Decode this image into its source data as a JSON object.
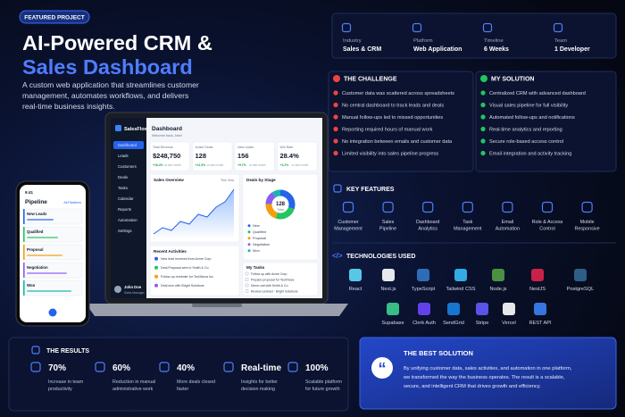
{
  "badge": "FEATURED PROJECT",
  "title": [
    "AI-Powered CRM &",
    "Sales Dashboard"
  ],
  "description": [
    "A custom web application that streamlines customer",
    "management, automates workflows, and delivers",
    "real-time business insights."
  ],
  "info": [
    {
      "label": "Industry",
      "value": "Sales & CRM"
    },
    {
      "label": "Platform",
      "value": "Web Application"
    },
    {
      "label": "Timeline",
      "value": "6 Weeks"
    },
    {
      "label": "Team",
      "value": "1 Developer"
    }
  ],
  "challenge": {
    "title": "THE CHALLENGE",
    "items": [
      "Customer data was scattered across spreadsheets",
      "No central dashboard to track leads and deals",
      "Manual follow-ups led to missed opportunities",
      "Reporting required hours of manual work",
      "No integration between emails and customer data",
      "Limited visibility into sales pipeline progress"
    ]
  },
  "solution": {
    "title": "MY SOLUTION",
    "items": [
      "Centralized CRM with advanced dashboard",
      "Visual sales pipeline for full visibility",
      "Automated follow-ups and notifications",
      "Real-time analytics and reporting",
      "Secure role-based access control",
      "Email integration and activity tracking"
    ]
  },
  "features": {
    "title": "KEY FEATURES",
    "items": [
      [
        "Customer",
        "Management"
      ],
      [
        "Sales",
        "Pipeline"
      ],
      [
        "Dashboard",
        "Analytics"
      ],
      [
        "Task",
        "Management"
      ],
      [
        "Email",
        "Automation"
      ],
      [
        "Role & Access",
        "Control"
      ],
      [
        "Mobile",
        "Responsive"
      ]
    ]
  },
  "technologies": {
    "title": "TECHNOLOGIES USED",
    "rows": [
      [
        "React",
        "Next.js",
        "TypeScript",
        "Tailwind CSS",
        "Node.js",
        "NestJS",
        "PostgreSQL"
      ],
      [
        "Supabase",
        "Clerk Auth",
        "SendGrid",
        "Stripe",
        "Vercel",
        "REST API"
      ]
    ]
  },
  "results": {
    "title": "THE RESULTS",
    "items": [
      {
        "value": "70%",
        "text": [
          "Increase in team",
          "productivity"
        ]
      },
      {
        "value": "60%",
        "text": [
          "Reduction in manual",
          "administrative work"
        ]
      },
      {
        "value": "40%",
        "text": [
          "More deals closed",
          "faster"
        ]
      },
      {
        "value": "Real-time",
        "text": [
          "Insights for better",
          "decision making"
        ]
      },
      {
        "value": "100%",
        "text": [
          "Scalable platform",
          "for future growth"
        ]
      }
    ]
  },
  "best": {
    "title": "THE BEST SOLUTION",
    "text": [
      "By unifying customer data, sales activities, and automation in one platform,",
      "we transformed the way the business operates. The result is a scalable,",
      "secure, and intelligent CRM that drives growth and efficiency."
    ]
  },
  "dashboard": {
    "brand": "SalesFlow",
    "nav": [
      "Dashboard",
      "Leads",
      "Customers",
      "Deals",
      "Tasks",
      "Calendar",
      "Reports",
      "Automation",
      "Settings"
    ],
    "heading": "Dashboard",
    "welcome": "Welcome back, John!",
    "compare": "vs last month",
    "stats": [
      {
        "label": "Total Revenue",
        "value": "$248,750",
        "change": "+18.4%"
      },
      {
        "label": "Active Deals",
        "value": "128",
        "change": "+12.5%"
      },
      {
        "label": "New Leads",
        "value": "156",
        "change": "+9.7%"
      },
      {
        "label": "Win Rate",
        "value": "28.4%",
        "change": "+3.2%"
      }
    ],
    "overview": "Sales Overview",
    "period": "This Year",
    "stages_title": "Deals by Stage",
    "total": "128",
    "total_label": "Total",
    "stages": [
      "New",
      "Qualified",
      "Proposal",
      "Negotiation",
      "Won"
    ],
    "activities_title": "Recent Activities",
    "activities": [
      "New lead received from Acme Corp",
      "Deal Proposal sent to Smith & Co.",
      "Follow-up reminder for TechNova Inc.",
      "Deal won with Bright Solutions"
    ],
    "tasks_title": "My Tasks",
    "tasks": [
      "Follow up with Acme Corp",
      "Prepare proposal for TechNova",
      "Demo call with Smith & Co.",
      "Review contract - Bright Solutions"
    ],
    "user": "John Doe",
    "role": "Sales Manager"
  },
  "phone": {
    "time": "9:41",
    "title": "Pipeline",
    "filter": "All Pipelines",
    "stages": [
      "New Leads",
      "Qualified",
      "Proposal",
      "Negotiation",
      "Won"
    ]
  }
}
